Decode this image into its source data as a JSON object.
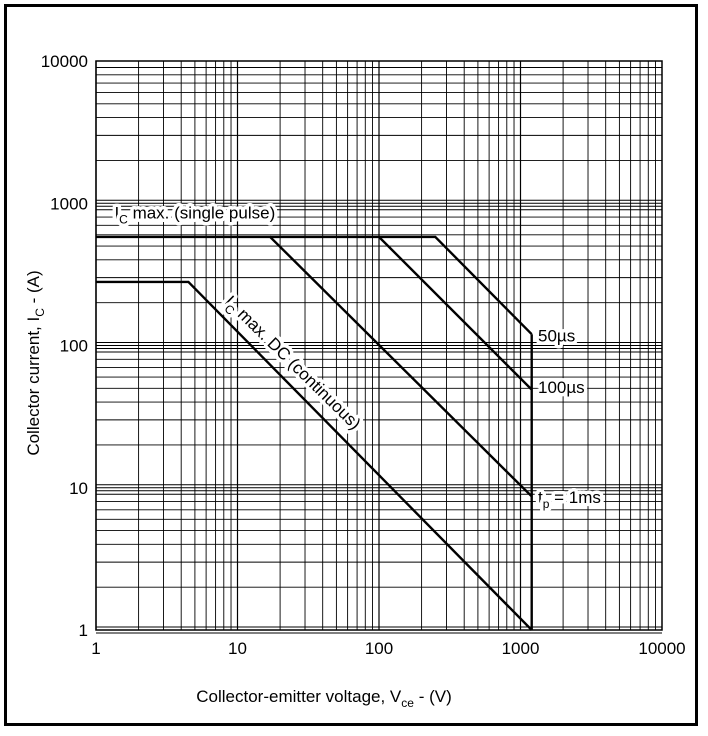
{
  "chart_data": {
    "type": "line",
    "x_scale": "log",
    "y_scale": "log",
    "xlim": [
      1,
      10000
    ],
    "ylim": [
      1,
      10000
    ],
    "x_ticks": [
      "1",
      "10",
      "100",
      "1000",
      "10000"
    ],
    "y_ticks": [
      "1",
      "10",
      "100",
      "1000",
      "10000"
    ],
    "xlabel": {
      "text": "Collector-emitter voltage, V",
      "sub": "ce",
      "suffix": " - (V)"
    },
    "ylabel": {
      "text": "Collector current, I",
      "sub": "C",
      "suffix": " - (A)"
    },
    "grid": true,
    "line_color": "#000000",
    "series": [
      {
        "key": "dc",
        "points": [
          [
            1,
            280
          ],
          [
            4.5,
            280
          ],
          [
            1200,
            1
          ]
        ]
      },
      {
        "key": "1ms",
        "points": [
          [
            1,
            580
          ],
          [
            17,
            580
          ],
          [
            1200,
            8.7
          ]
        ]
      },
      {
        "key": "100us",
        "points": [
          [
            17,
            580
          ],
          [
            100,
            580
          ],
          [
            1200,
            49
          ]
        ]
      },
      {
        "key": "50us",
        "points": [
          [
            100,
            580
          ],
          [
            250,
            580
          ],
          [
            1200,
            120
          ]
        ]
      },
      {
        "key": "vce-limit",
        "points": [
          [
            1200,
            1
          ],
          [
            1200,
            120
          ]
        ]
      }
    ],
    "annotations": [
      {
        "key": "ic-pulse",
        "main": "I",
        "sub": "C",
        "rest": " max. (single pulse)"
      },
      {
        "key": "ic-dc",
        "main": "I",
        "sub": "C",
        "rest": " max. DC (continuous)"
      },
      {
        "key": "lbl-50us",
        "main": "50µs",
        "sub": "",
        "rest": ""
      },
      {
        "key": "lbl-100us",
        "main": "100µs",
        "sub": "",
        "rest": ""
      },
      {
        "key": "lbl-1ms",
        "main": "t",
        "sub": "p",
        "rest": " = 1ms"
      }
    ]
  }
}
